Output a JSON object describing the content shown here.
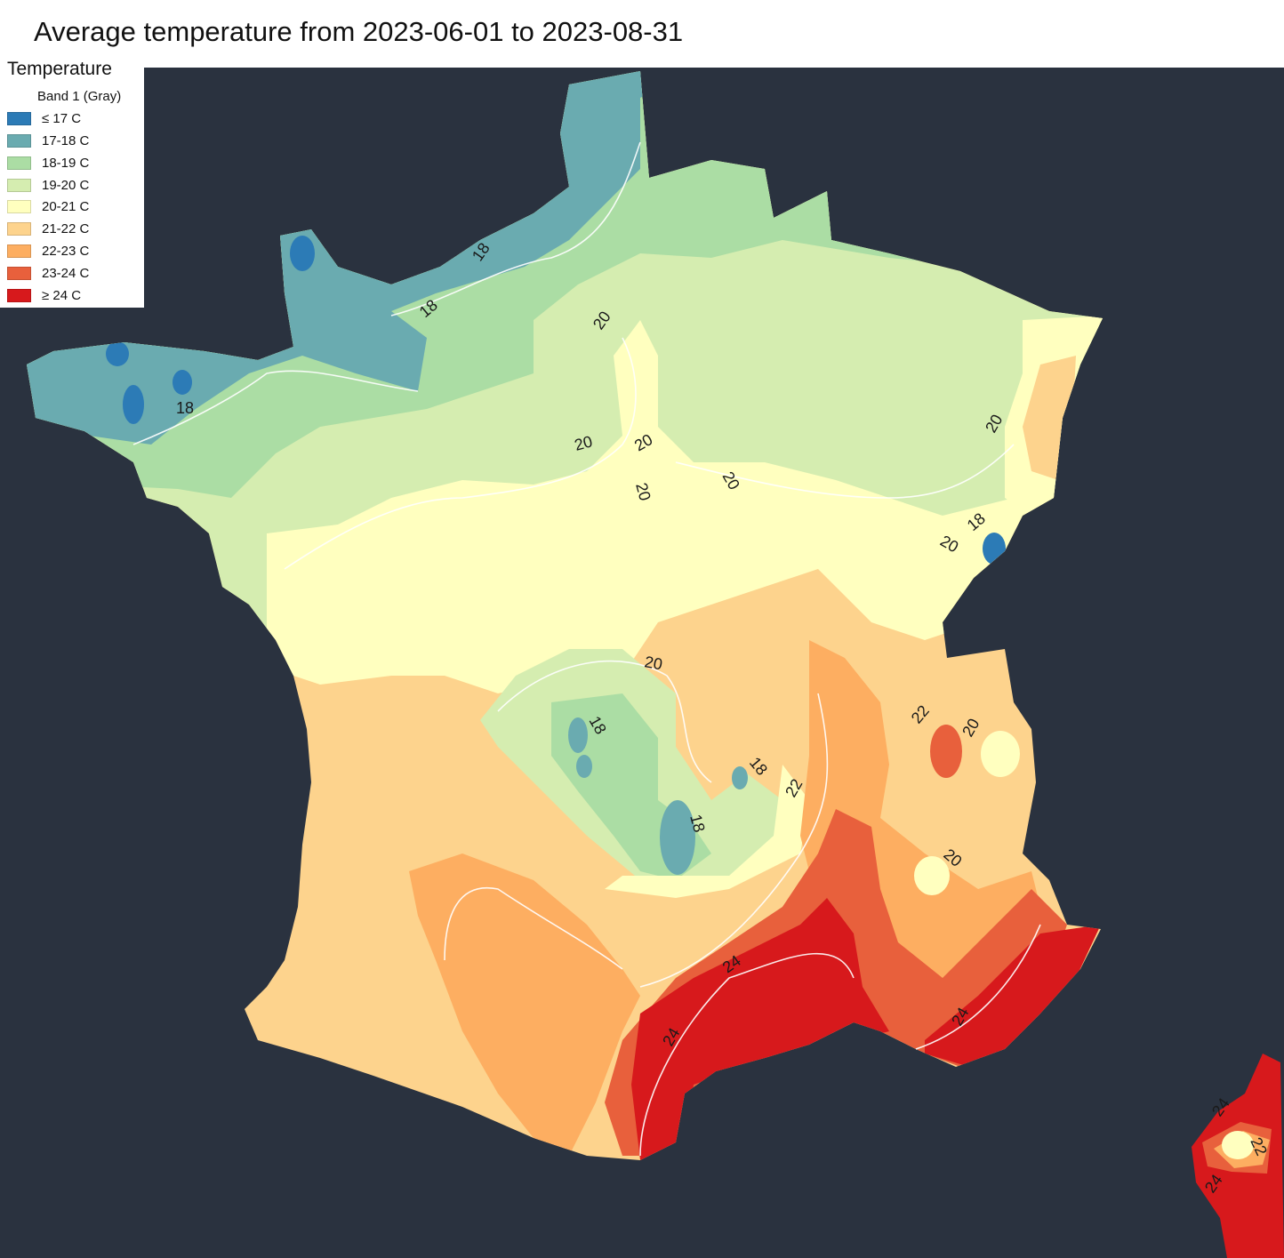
{
  "title": "Average temperature from 2023-06-01 to 2023-08-31",
  "legend": {
    "title": "Temperature",
    "subtitle": "Band 1 (Gray)",
    "items": [
      {
        "label": "≤ 17 C",
        "color": "#2c7bb6"
      },
      {
        "label": "17-18 C",
        "color": "#6aabb0"
      },
      {
        "label": "18-19 C",
        "color": "#abdda4"
      },
      {
        "label": "19-20 C",
        "color": "#d5edb0"
      },
      {
        "label": "20-21 C",
        "color": "#ffffbf"
      },
      {
        "label": "21-22 C",
        "color": "#fdd38d"
      },
      {
        "label": "22-23 C",
        "color": "#fdae61"
      },
      {
        "label": "23-24 C",
        "color": "#e8603c"
      },
      {
        "label": "≥ 24 C",
        "color": "#d7191c"
      }
    ]
  },
  "background_color": "#2a323f",
  "contour_labels": [
    "18",
    "18",
    "18",
    "20",
    "20",
    "20",
    "20",
    "20",
    "20",
    "18",
    "20",
    "20",
    "18",
    "18",
    "18",
    "22",
    "20",
    "22",
    "20",
    "24",
    "24",
    "24",
    "24",
    "22",
    "24"
  ]
}
